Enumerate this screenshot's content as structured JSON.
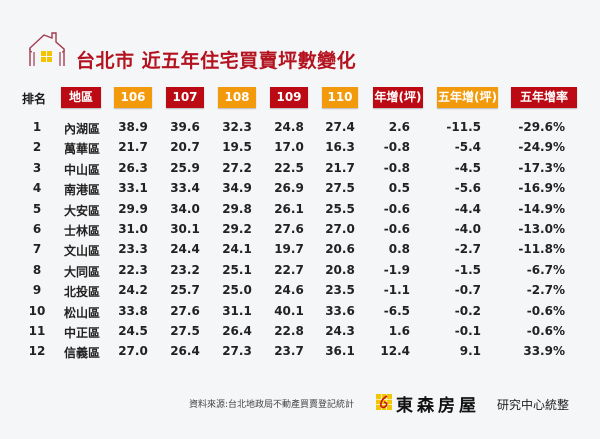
{
  "title": "台北市 近五年住宅買賣坪數變化",
  "columns": {
    "rank": "排名",
    "district": "地區",
    "y106": "106",
    "y107": "107",
    "y108": "108",
    "y109": "109",
    "y110": "110",
    "yoy": "年增(坪)",
    "five_year": "五年增(坪)",
    "five_year_rate": "五年增率"
  },
  "colors": {
    "red": "#bb0a14",
    "orange": "#f29a0c",
    "title": "#b3121e",
    "logo_yellow": "#f2c500"
  },
  "rows": [
    {
      "rank": "1",
      "district": "內湖區",
      "y106": "38.9",
      "y107": "39.6",
      "y108": "32.3",
      "y109": "24.8",
      "y110": "27.4",
      "yoy": "2.6",
      "five": "-11.5",
      "rate": "-29.6%"
    },
    {
      "rank": "2",
      "district": "萬華區",
      "y106": "21.7",
      "y107": "20.7",
      "y108": "19.5",
      "y109": "17.0",
      "y110": "16.3",
      "yoy": "-0.8",
      "five": "-5.4",
      "rate": "-24.9%"
    },
    {
      "rank": "3",
      "district": "中山區",
      "y106": "26.3",
      "y107": "25.9",
      "y108": "27.2",
      "y109": "22.5",
      "y110": "21.7",
      "yoy": "-0.8",
      "five": "-4.5",
      "rate": "-17.3%"
    },
    {
      "rank": "4",
      "district": "南港區",
      "y106": "33.1",
      "y107": "33.4",
      "y108": "34.9",
      "y109": "26.9",
      "y110": "27.5",
      "yoy": "0.5",
      "five": "-5.6",
      "rate": "-16.9%"
    },
    {
      "rank": "5",
      "district": "大安區",
      "y106": "29.9",
      "y107": "34.0",
      "y108": "29.8",
      "y109": "26.1",
      "y110": "25.5",
      "yoy": "-0.6",
      "five": "-4.4",
      "rate": "-14.9%"
    },
    {
      "rank": "6",
      "district": "士林區",
      "y106": "31.0",
      "y107": "30.1",
      "y108": "29.2",
      "y109": "27.6",
      "y110": "27.0",
      "yoy": "-0.6",
      "five": "-4.0",
      "rate": "-13.0%"
    },
    {
      "rank": "7",
      "district": "文山區",
      "y106": "23.3",
      "y107": "24.4",
      "y108": "24.1",
      "y109": "19.7",
      "y110": "20.6",
      "yoy": "0.8",
      "five": "-2.7",
      "rate": "-11.8%"
    },
    {
      "rank": "8",
      "district": "大同區",
      "y106": "22.3",
      "y107": "23.2",
      "y108": "25.1",
      "y109": "22.7",
      "y110": "20.8",
      "yoy": "-1.9",
      "five": "-1.5",
      "rate": "-6.7%"
    },
    {
      "rank": "9",
      "district": "北投區",
      "y106": "24.2",
      "y107": "25.7",
      "y108": "25.0",
      "y109": "24.6",
      "y110": "23.5",
      "yoy": "-1.1",
      "five": "-0.7",
      "rate": "-2.7%"
    },
    {
      "rank": "10",
      "district": "松山區",
      "y106": "33.8",
      "y107": "27.6",
      "y108": "31.1",
      "y109": "40.1",
      "y110": "33.6",
      "yoy": "-6.5",
      "five": "-0.2",
      "rate": "-0.6%"
    },
    {
      "rank": "11",
      "district": "中正區",
      "y106": "24.5",
      "y107": "27.5",
      "y108": "26.4",
      "y109": "22.8",
      "y110": "24.3",
      "yoy": "1.6",
      "five": "-0.1",
      "rate": "-0.6%"
    },
    {
      "rank": "12",
      "district": "信義區",
      "y106": "27.0",
      "y107": "26.4",
      "y108": "27.3",
      "y109": "23.7",
      "y110": "36.1",
      "yoy": "12.4",
      "five": "9.1",
      "rate": "33.9%"
    }
  ],
  "footer": {
    "source": "資料來源:台北地政局不動產買賣登記統計",
    "brand": "東森房屋",
    "brand_sub": "研究中心統整",
    "icons": {
      "house": "house-icon",
      "logo": "brand-logo-icon"
    }
  },
  "chart_data": {
    "type": "table",
    "title": "台北市 近五年住宅買賣坪數變化",
    "headers": [
      "排名",
      "地區",
      "106",
      "107",
      "108",
      "109",
      "110",
      "年增(坪)",
      "五年增(坪)",
      "五年增率"
    ],
    "rows": [
      [
        1,
        "內湖區",
        38.9,
        39.6,
        32.3,
        24.8,
        27.4,
        2.6,
        -11.5,
        "-29.6%"
      ],
      [
        2,
        "萬華區",
        21.7,
        20.7,
        19.5,
        17.0,
        16.3,
        -0.8,
        -5.4,
        "-24.9%"
      ],
      [
        3,
        "中山區",
        26.3,
        25.9,
        27.2,
        22.5,
        21.7,
        -0.8,
        -4.5,
        "-17.3%"
      ],
      [
        4,
        "南港區",
        33.1,
        33.4,
        34.9,
        26.9,
        27.5,
        0.5,
        -5.6,
        "-16.9%"
      ],
      [
        5,
        "大安區",
        29.9,
        34.0,
        29.8,
        26.1,
        25.5,
        -0.6,
        -4.4,
        "-14.9%"
      ],
      [
        6,
        "士林區",
        31.0,
        30.1,
        29.2,
        27.6,
        27.0,
        -0.6,
        -4.0,
        "-13.0%"
      ],
      [
        7,
        "文山區",
        23.3,
        24.4,
        24.1,
        19.7,
        20.6,
        0.8,
        -2.7,
        "-11.8%"
      ],
      [
        8,
        "大同區",
        22.3,
        23.2,
        25.1,
        22.7,
        20.8,
        -1.9,
        -1.5,
        "-6.7%"
      ],
      [
        9,
        "北投區",
        24.2,
        25.7,
        25.0,
        24.6,
        23.5,
        -1.1,
        -0.7,
        "-2.7%"
      ],
      [
        10,
        "松山區",
        33.8,
        27.6,
        31.1,
        40.1,
        33.6,
        -6.5,
        -0.2,
        "-0.6%"
      ],
      [
        11,
        "中正區",
        24.5,
        27.5,
        26.4,
        22.8,
        24.3,
        1.6,
        -0.1,
        "-0.6%"
      ],
      [
        12,
        "信義區",
        27.0,
        26.4,
        27.3,
        23.7,
        36.1,
        12.4,
        9.1,
        "33.9%"
      ]
    ]
  }
}
